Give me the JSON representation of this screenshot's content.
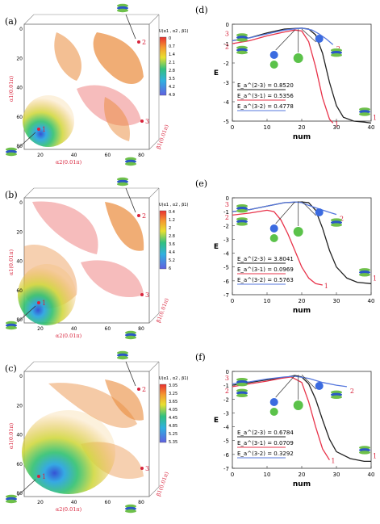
{
  "colors": {
    "red_series": "#e8334a",
    "black_series": "#222222",
    "blue_series": "#5577dd",
    "annot_red": "#d8243c",
    "axis_blue": "#3a5bd0",
    "contour_orange": "#e98a3a",
    "contour_pink": "#f08f8f"
  },
  "panels": [
    {
      "label": "(a)",
      "colorbar_title": "U(α1 , α2 , β1)",
      "colorbar_ticks": [
        "0",
        "0.7",
        "1.4",
        "2.1",
        "2.8",
        "3.5",
        "4.2",
        "4.9"
      ],
      "axis_x": "α2(0.01π)",
      "axis_y": "α1(0.01π)",
      "axis_z": "β1(0.01π)",
      "ticks_x": [
        "20",
        "40",
        "60",
        "80"
      ],
      "ticks_y": [
        "0",
        "20",
        "40",
        "60",
        "80"
      ],
      "points": [
        "1",
        "2",
        "3"
      ]
    },
    {
      "label": "(b)",
      "colorbar_title": "U(α1 , α2 , β1)",
      "colorbar_ticks": [
        "0.4",
        "1.2",
        "2",
        "2.8",
        "3.6",
        "4.4",
        "5.2",
        "6"
      ],
      "axis_x": "α2(0.01π)",
      "axis_y": "α1(0.01π)",
      "axis_z": "β1(0.01π)",
      "ticks_x": [
        "20",
        "40",
        "60",
        "80"
      ],
      "ticks_y": [
        "0",
        "20",
        "40",
        "60",
        "80"
      ],
      "points": [
        "1",
        "2",
        "3"
      ]
    },
    {
      "label": "(c)",
      "colorbar_title": "U(α1 , α2 , β1)",
      "colorbar_ticks": [
        "3.05",
        "3.25",
        "3.65",
        "4.05",
        "4.45",
        "4.85",
        "5.25",
        "5.35"
      ],
      "axis_x": "α2(0.01π)",
      "axis_y": "α1(0.01π)",
      "axis_z": "β1(0.01π)",
      "ticks_x": [
        "20",
        "40",
        "60",
        "80"
      ],
      "ticks_y": [
        "0",
        "20",
        "40",
        "60",
        "80"
      ],
      "points": [
        "1",
        "2",
        "3"
      ]
    }
  ],
  "chart_data": [
    {
      "type": "line",
      "label": "(d)",
      "xlabel": "num",
      "ylabel": "E",
      "xlim": [
        0,
        40
      ],
      "ylim": [
        -5,
        0
      ],
      "xticks": [
        "0",
        "10",
        "20",
        "30",
        "40"
      ],
      "yticks": [
        "0",
        "-1",
        "-2",
        "-3",
        "-4",
        "-5"
      ],
      "legend": [
        "E_a^(2-3) = 0.8520",
        "E_a^(3-1) = 0.5356",
        "E_a^(3-2) = 0.4778"
      ],
      "endpoint_labels": [
        "1",
        "1",
        "2",
        "2",
        "3"
      ],
      "series": [
        {
          "key": "black",
          "color": "#222222",
          "x": [
            0,
            5,
            10,
            15,
            20,
            22,
            24,
            26,
            28,
            30,
            32,
            35,
            38,
            40
          ],
          "y": [
            -0.85,
            -0.7,
            -0.45,
            -0.25,
            -0.2,
            -0.25,
            -0.55,
            -1.5,
            -3.0,
            -4.2,
            -4.8,
            -5.0,
            -5.05,
            -5.1
          ]
        },
        {
          "key": "red",
          "color": "#e8334a",
          "x": [
            0,
            5,
            10,
            15,
            18,
            20,
            22,
            24,
            26,
            28,
            29
          ],
          "y": [
            -1.0,
            -0.85,
            -0.6,
            -0.4,
            -0.3,
            -0.35,
            -0.9,
            -2.2,
            -3.8,
            -4.9,
            -5.1
          ]
        },
        {
          "key": "blue",
          "color": "#5577dd",
          "x": [
            0,
            5,
            10,
            15,
            20,
            23,
            25,
            27,
            29
          ],
          "y": [
            -0.85,
            -0.7,
            -0.5,
            -0.3,
            -0.2,
            -0.3,
            -0.5,
            -0.75,
            -1.05
          ]
        }
      ]
    },
    {
      "type": "line",
      "label": "(e)",
      "xlabel": "num",
      "ylabel": "E",
      "xlim": [
        0,
        40
      ],
      "ylim": [
        -7,
        0
      ],
      "xticks": [
        "0",
        "10",
        "20",
        "30",
        "40"
      ],
      "yticks": [
        "0",
        "-1",
        "-2",
        "-3",
        "-4",
        "-5",
        "-6",
        "-7"
      ],
      "legend": [
        "E_a^(2-3) = 3.8041",
        "E_a^(3-1) = 0.0969",
        "E_a^(3-2) = 0.5763"
      ],
      "endpoint_labels": [
        "1",
        "1",
        "2",
        "2",
        "3"
      ],
      "series": [
        {
          "key": "black",
          "color": "#222222",
          "x": [
            0,
            5,
            10,
            15,
            20,
            22,
            24,
            26,
            28,
            30,
            33,
            36,
            40
          ],
          "y": [
            -1.0,
            -0.85,
            -0.6,
            -0.35,
            -0.3,
            -0.35,
            -0.9,
            -2.2,
            -3.8,
            -5.0,
            -5.8,
            -6.1,
            -6.2
          ]
        },
        {
          "key": "red",
          "color": "#e8334a",
          "x": [
            0,
            5,
            10,
            12,
            14,
            16,
            18,
            20,
            22,
            24,
            26
          ],
          "y": [
            -1.25,
            -1.1,
            -0.9,
            -1.0,
            -1.6,
            -2.6,
            -3.8,
            -5.0,
            -5.8,
            -6.2,
            -6.3
          ]
        },
        {
          "key": "blue",
          "color": "#5577dd",
          "x": [
            0,
            5,
            10,
            15,
            18,
            20,
            22,
            25,
            28,
            30
          ],
          "y": [
            -1.0,
            -0.85,
            -0.6,
            -0.35,
            -0.3,
            -0.35,
            -0.55,
            -0.8,
            -1.05,
            -1.2
          ]
        }
      ]
    },
    {
      "type": "line",
      "label": "(f)",
      "xlabel": "num",
      "ylabel": "E",
      "xlim": [
        0,
        40
      ],
      "ylim": [
        -7,
        0
      ],
      "xticks": [
        "0",
        "10",
        "20",
        "30",
        "40"
      ],
      "yticks": [
        "0",
        "-1",
        "-2",
        "-3",
        "-4",
        "-5",
        "-6",
        "-7"
      ],
      "legend": [
        "E_a^(2-3) = 0.6784",
        "E_a^(3-1) = 0.0709",
        "E_a^(3-2) = 0.3292"
      ],
      "endpoint_labels": [
        "1",
        "1",
        "2",
        "2",
        "3"
      ],
      "series": [
        {
          "key": "black",
          "color": "#222222",
          "x": [
            0,
            5,
            10,
            15,
            18,
            20,
            22,
            24,
            26,
            28,
            30,
            34,
            38,
            40
          ],
          "y": [
            -1.0,
            -0.8,
            -0.6,
            -0.45,
            -0.3,
            -0.4,
            -0.9,
            -2.0,
            -3.5,
            -4.9,
            -5.8,
            -6.3,
            -6.5,
            -6.5
          ]
        },
        {
          "key": "red",
          "color": "#e8334a",
          "x": [
            0,
            5,
            10,
            14,
            17,
            20,
            22,
            24,
            26,
            28
          ],
          "y": [
            -1.1,
            -0.9,
            -0.7,
            -0.5,
            -0.4,
            -0.8,
            -2.2,
            -4.0,
            -5.6,
            -6.4
          ]
        },
        {
          "key": "blue",
          "color": "#5577dd",
          "x": [
            0,
            5,
            10,
            15,
            18,
            22,
            26,
            30,
            33
          ],
          "y": [
            -0.9,
            -0.75,
            -0.55,
            -0.4,
            -0.35,
            -0.5,
            -0.8,
            -1.0,
            -1.1
          ]
        }
      ]
    }
  ]
}
